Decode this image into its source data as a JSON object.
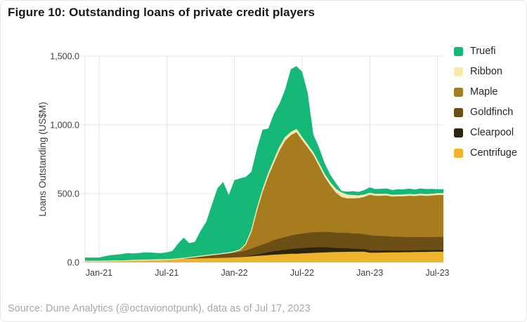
{
  "title": "Figure 10: Outstanding loans of private credit players",
  "source": "Source: Dune Analytics (@octavionotpunk), data as of Jul 17, 2023",
  "chart_data": {
    "type": "area",
    "stacked": true,
    "title": "Figure 10: Outstanding loans of private credit players",
    "xlabel": "",
    "ylabel": "Loans Outstanding (US$M)",
    "ylim": [
      0,
      1500
    ],
    "grid": true,
    "legend_position": "right",
    "x_note": "months since Jan-2021",
    "x": [
      0,
      0.5,
      1,
      1.5,
      2,
      2.5,
      3,
      3.5,
      4,
      4.5,
      5,
      5.5,
      6,
      6.5,
      7,
      7.5,
      8,
      8.5,
      9,
      9.5,
      10,
      10.5,
      11,
      11.5,
      12,
      12.5,
      13,
      13.5,
      14,
      14.5,
      15,
      15.5,
      16,
      16.5,
      17,
      17.5,
      18,
      18.5,
      19,
      19.5,
      20,
      20.5,
      21,
      21.5,
      22,
      22.5,
      23,
      23.5,
      24,
      24.5,
      25,
      25.5,
      26,
      26.5,
      27,
      27.5,
      28,
      28.5,
      29,
      29.5,
      30
    ],
    "x_ticks": [
      {
        "label": "Jan-21",
        "month": 0
      },
      {
        "label": "Jul-21",
        "month": 6
      },
      {
        "label": "Jan-22",
        "month": 12
      },
      {
        "label": "Jul-22",
        "month": 18
      },
      {
        "label": "Jan-23",
        "month": 24
      },
      {
        "label": "Jul-23",
        "month": 30
      }
    ],
    "y_ticks": [
      {
        "label": "0.0",
        "value": 0
      },
      {
        "label": "500.0",
        "value": 500
      },
      {
        "label": "1,000.0",
        "value": 1000
      },
      {
        "label": "1,500.0",
        "value": 1500
      }
    ],
    "series": [
      {
        "name": "Centrifuge",
        "color": "#edb42c",
        "values": [
          8,
          9,
          10,
          11,
          12,
          13,
          15,
          16,
          17,
          18,
          19,
          20,
          21,
          23,
          24,
          26,
          27,
          28,
          29,
          30,
          31,
          32,
          33,
          34,
          36,
          38,
          41,
          44,
          47,
          50,
          53,
          56,
          58,
          60,
          62,
          63,
          65,
          67,
          69,
          71,
          72,
          74,
          75,
          76,
          77,
          77,
          78,
          78,
          70,
          70,
          71,
          72,
          73,
          73,
          74,
          74,
          75,
          76,
          76,
          77,
          78
        ]
      },
      {
        "name": "Clearpool",
        "color": "#2d250e",
        "values": [
          0,
          0,
          0,
          0,
          0,
          0,
          0,
          0,
          0,
          0,
          0,
          0,
          0,
          0,
          0,
          0,
          0,
          0,
          0,
          0,
          0,
          0,
          0,
          0,
          0,
          0,
          3,
          6,
          10,
          15,
          20,
          25,
          28,
          32,
          35,
          37,
          39,
          40,
          40,
          39,
          38,
          34,
          30,
          27,
          25,
          22,
          20,
          18,
          17,
          16,
          15,
          14,
          13,
          13,
          12,
          12,
          12,
          12,
          12,
          12,
          12
        ]
      },
      {
        "name": "Goldfinch",
        "color": "#6b4f15",
        "values": [
          0,
          0,
          0,
          0,
          0,
          0,
          0,
          0,
          0,
          0,
          0,
          0,
          0,
          0,
          2,
          4,
          8,
          12,
          16,
          20,
          24,
          27,
          30,
          32,
          34,
          38,
          42,
          50,
          58,
          65,
          72,
          80,
          87,
          93,
          98,
          102,
          105,
          108,
          110,
          111,
          112,
          112,
          111,
          112,
          113,
          112,
          111,
          110,
          110,
          108,
          106,
          104,
          102,
          100,
          99,
          98,
          97,
          96,
          95,
          95,
          95
        ]
      },
      {
        "name": "Maple",
        "color": "#a67c1e",
        "values": [
          0,
          0,
          0,
          0,
          0,
          0,
          0,
          0,
          0,
          0,
          0,
          0,
          0,
          0,
          0,
          0,
          0,
          0,
          0,
          0,
          0,
          0,
          2,
          4,
          8,
          15,
          40,
          120,
          260,
          380,
          480,
          560,
          640,
          700,
          730,
          745,
          680,
          620,
          560,
          480,
          400,
          340,
          290,
          260,
          250,
          255,
          258,
          270,
          294,
          290,
          292,
          296,
          290,
          294,
          296,
          300,
          298,
          302,
          300,
          302,
          305
        ]
      },
      {
        "name": "Ribbon",
        "color": "#f6e8ae",
        "values": [
          0,
          0,
          0,
          0,
          0,
          0,
          0,
          0,
          0,
          0,
          0,
          0,
          0,
          0,
          0,
          0,
          0,
          0,
          0,
          0,
          0,
          0,
          0,
          0,
          0,
          0,
          5,
          8,
          12,
          15,
          18,
          20,
          22,
          22,
          20,
          20,
          18,
          17,
          16,
          15,
          15,
          18,
          25,
          30,
          25,
          20,
          16,
          14,
          12,
          11,
          11,
          10,
          10,
          10,
          10,
          10,
          10,
          10,
          10,
          10,
          10
        ]
      },
      {
        "name": "Truefi",
        "color": "#16b877",
        "values": [
          27,
          35,
          42,
          45,
          48,
          55,
          50,
          52,
          55,
          54,
          50,
          48,
          52,
          60,
          110,
          150,
          105,
          110,
          185,
          245,
          365,
          480,
          520,
          420,
          520,
          520,
          490,
          430,
          440,
          440,
          330,
          340,
          320,
          350,
          460,
          460,
          480,
          380,
          135,
          120,
          85,
          60,
          45,
          15,
          25,
          32,
          30,
          35,
          43,
          38,
          40,
          42,
          38,
          42,
          40,
          43,
          38,
          42,
          40,
          38,
          32
        ]
      }
    ],
    "legend": [
      {
        "label": "Truefi",
        "color": "#16b877"
      },
      {
        "label": "Ribbon",
        "color": "#f6e8ae"
      },
      {
        "label": "Maple",
        "color": "#a67c1e"
      },
      {
        "label": "Goldfinch",
        "color": "#6b4f15"
      },
      {
        "label": "Clearpool",
        "color": "#2d250e"
      },
      {
        "label": "Centrifuge",
        "color": "#edb42c"
      }
    ]
  },
  "style_colors": {
    "boundary_line": "#f9efc0",
    "grid_line": "#e4e4e4",
    "tick_text": "#3d3d3d"
  }
}
